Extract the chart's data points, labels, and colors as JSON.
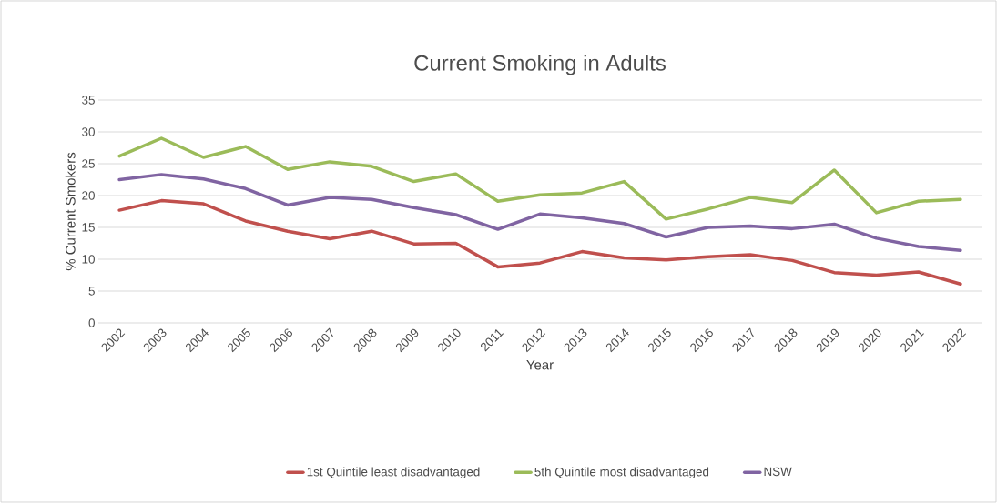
{
  "chart_data": {
    "type": "line",
    "title": "Current Smoking in Adults",
    "xlabel": "Year",
    "ylabel": "% Current Smokers",
    "categories": [
      "2002",
      "2003",
      "2004",
      "2005",
      "2006",
      "2007",
      "2008",
      "2009",
      "2010",
      "2011",
      "2012",
      "2013",
      "2014",
      "2015",
      "2016",
      "2017",
      "2018",
      "2019",
      "2020",
      "2021",
      "2022"
    ],
    "series": [
      {
        "name": "1st Quintile least disadvantaged",
        "color": "#c0504d",
        "values": [
          17.7,
          19.2,
          18.7,
          16.0,
          14.4,
          13.2,
          14.4,
          12.4,
          12.5,
          8.8,
          9.4,
          11.2,
          10.2,
          9.9,
          10.4,
          10.7,
          9.8,
          7.9,
          7.5,
          8.0,
          6.1
        ]
      },
      {
        "name": "5th Quintile most disadvantaged",
        "color": "#9bbb59",
        "values": [
          26.2,
          29.0,
          26.0,
          27.7,
          24.1,
          25.3,
          24.6,
          22.2,
          23.4,
          19.1,
          20.1,
          20.4,
          22.2,
          16.3,
          17.9,
          19.7,
          18.9,
          24.0,
          17.3,
          19.1,
          19.4
        ]
      },
      {
        "name": "NSW",
        "color": "#8064a2",
        "values": [
          22.5,
          23.3,
          22.6,
          21.1,
          18.5,
          19.7,
          19.4,
          18.1,
          17.0,
          14.7,
          17.1,
          16.5,
          15.6,
          13.5,
          15.0,
          15.2,
          14.8,
          15.5,
          13.3,
          12.0,
          11.4
        ]
      }
    ],
    "ylim": [
      0,
      35
    ],
    "yticks": [
      0,
      5,
      10,
      15,
      20,
      25,
      30,
      35
    ],
    "grid": "y",
    "legend": "bottom",
    "marker": "none",
    "line_style": "solid"
  }
}
